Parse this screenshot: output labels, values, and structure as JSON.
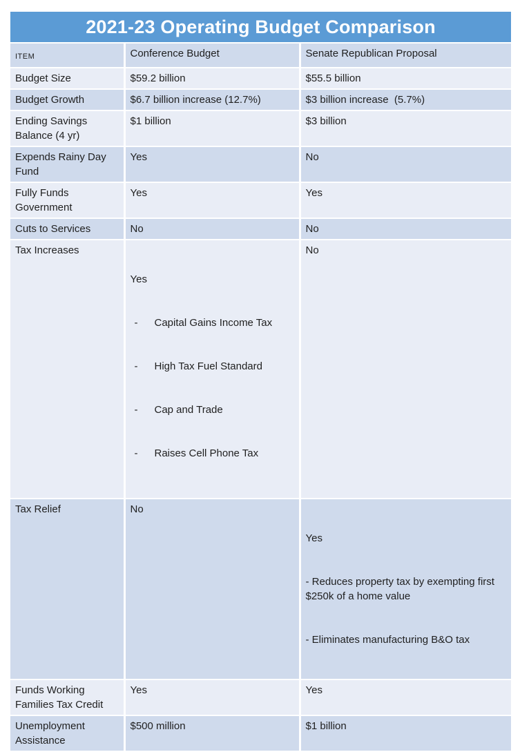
{
  "title": "2021-23 Operating Budget Comparison",
  "colors": {
    "title_bar": "#5b9bd5",
    "title_text": "#ffffff",
    "band_dark": "#cfdaec",
    "band_light": "#e9edf6",
    "body_text": "#1f1f1f"
  },
  "table": {
    "columns": [
      "ITEM",
      "Conference Budget",
      "Senate Republican Proposal"
    ],
    "rows": [
      {
        "item": "Budget Size",
        "conference": {
          "main": "$59.2 billion"
        },
        "senate": {
          "main": "$55.5 billion"
        }
      },
      {
        "item": "Budget Growth",
        "conference": {
          "main": "$6.7 billion increase (12.7%)"
        },
        "senate": {
          "main": "$3 billion increase  (5.7%)"
        }
      },
      {
        "item": "Ending Savings Balance (4 yr)",
        "conference": {
          "main": "$1 billion"
        },
        "senate": {
          "main": "$3 billion"
        }
      },
      {
        "item": "Expends Rainy Day Fund",
        "conference": {
          "main": "Yes"
        },
        "senate": {
          "main": "No"
        }
      },
      {
        "item": "Fully Funds Government",
        "conference": {
          "main": "Yes"
        },
        "senate": {
          "main": "Yes"
        }
      },
      {
        "item": "Cuts to Services",
        "conference": {
          "main": "No"
        },
        "senate": {
          "main": "No"
        }
      },
      {
        "item": "Tax Increases",
        "conference": {
          "main": "Yes",
          "marker": "-",
          "bullets": [
            "Capital Gains Income Tax",
            "High Tax Fuel Standard",
            "Cap and Trade",
            "Raises Cell Phone Tax"
          ]
        },
        "senate": {
          "main": "No"
        }
      },
      {
        "item": "Tax Relief",
        "conference": {
          "main": "No"
        },
        "senate": {
          "main": "Yes",
          "notes": [
            "- Reduces property tax by exempting first $250k of a home value",
            "- Eliminates manufacturing B&O tax"
          ]
        }
      },
      {
        "item": "Funds Working Families Tax Credit",
        "conference": {
          "main": "Yes"
        },
        "senate": {
          "main": "Yes"
        }
      },
      {
        "item": "Unemployment Assistance",
        "conference": {
          "main": "$500 million"
        },
        "senate": {
          "main": "$1 billion"
        }
      }
    ]
  }
}
